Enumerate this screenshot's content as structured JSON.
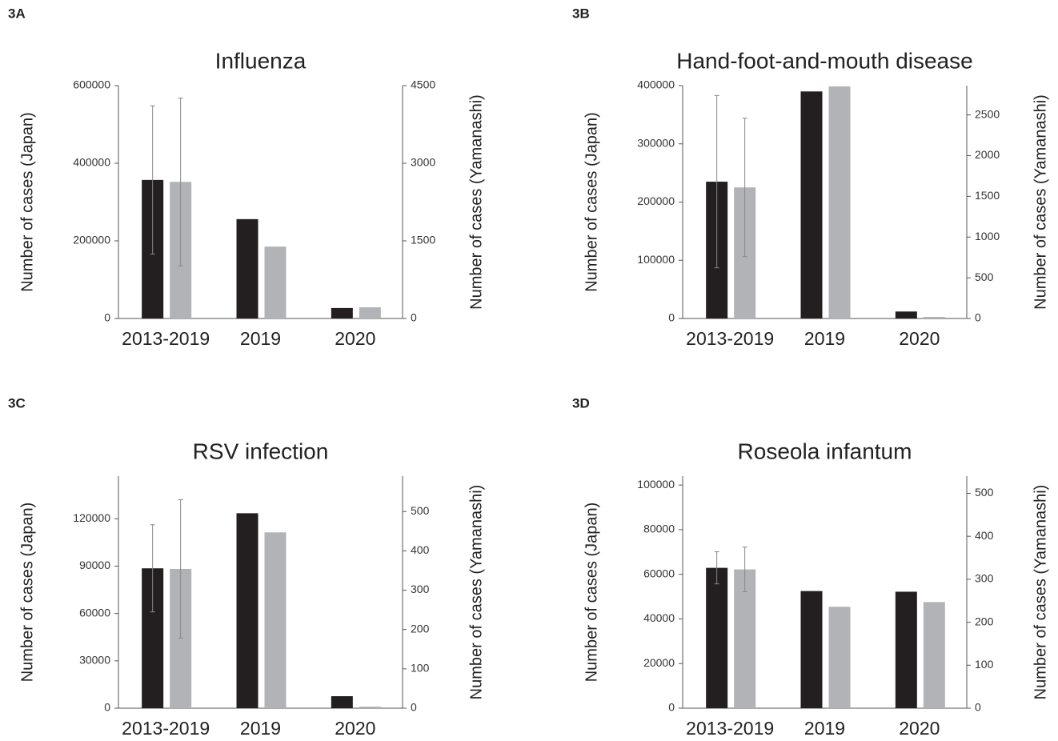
{
  "chart_data": [
    {
      "type": "bar",
      "label": "3A",
      "title": "Influenza",
      "y_label": "Number of cases (Japan)",
      "y2_label": "Number of cases (Yamanashi)",
      "categories": [
        "2013-2019",
        "2019",
        "2020"
      ],
      "series": [
        {
          "color": "#231f20",
          "values": [
            357000,
            256000,
            27000
          ],
          "errors": [
            191000,
            null,
            null
          ]
        },
        {
          "color": "#b1b3b6",
          "axis": "y2",
          "values": [
            2640,
            1390,
            216
          ],
          "errors": [
            1620,
            null,
            null
          ]
        }
      ],
      "ylim": [
        0,
        600000
      ],
      "yticks": [
        0,
        200000,
        400000,
        600000
      ],
      "y2lim": [
        0,
        4500
      ],
      "y2ticks": [
        0,
        1500,
        3000,
        4500
      ]
    },
    {
      "type": "bar",
      "label": "3B",
      "title": "Hand-foot-and-mouth disease",
      "y_label": "Number of cases (Japan)",
      "y2_label": "Number of cases (Yamanashi)",
      "categories": [
        "2013-2019",
        "2019",
        "2020"
      ],
      "series": [
        {
          "color": "#231f20",
          "values": [
            235000,
            390000,
            12000
          ],
          "errors": [
            148000,
            null,
            null
          ]
        },
        {
          "color": "#b1b3b6",
          "axis": "y2",
          "values": [
            1610,
            2850,
            20
          ],
          "errors": [
            850,
            null,
            null
          ]
        }
      ],
      "ylim": [
        0,
        400000
      ],
      "yticks": [
        0,
        100000,
        200000,
        300000,
        400000
      ],
      "y2lim": [
        0,
        2860
      ],
      "y2ticks": [
        0,
        500,
        1000,
        1500,
        2000,
        2500
      ]
    },
    {
      "type": "bar",
      "label": "3C",
      "title": "RSV infection",
      "y_label": "Number of cases (Japan)",
      "y2_label": "Number of cases (Yamanashi)",
      "categories": [
        "2013-2019",
        "2019",
        "2020"
      ],
      "series": [
        {
          "color": "#231f20",
          "values": [
            88600,
            123500,
            7600
          ],
          "errors": [
            27600,
            null,
            null
          ]
        },
        {
          "color": "#b1b3b6",
          "axis": "y2",
          "values": [
            354,
            447,
            4
          ],
          "errors": [
            176,
            null,
            null
          ]
        }
      ],
      "ylim": [
        0,
        147000
      ],
      "yticks": [
        0,
        30000,
        60000,
        90000,
        120000
      ],
      "y2lim": [
        0,
        590
      ],
      "y2ticks": [
        0,
        100,
        200,
        300,
        400,
        500
      ]
    },
    {
      "type": "bar",
      "label": "3D",
      "title": "Roseola infantum",
      "y_label": "Number of cases (Japan)",
      "y2_label": "Number of cases (Yamanashi)",
      "categories": [
        "2013-2019",
        "2019",
        "2020"
      ],
      "series": [
        {
          "color": "#231f20",
          "values": [
            62900,
            52500,
            52200
          ],
          "errors": [
            7200,
            null,
            null
          ]
        },
        {
          "color": "#b1b3b6",
          "axis": "y2",
          "values": [
            323,
            236,
            247
          ],
          "errors": [
            52,
            null,
            null
          ]
        }
      ],
      "ylim": [
        0,
        104000
      ],
      "yticks": [
        0,
        20000,
        40000,
        60000,
        80000,
        100000
      ],
      "y2lim": [
        0,
        540
      ],
      "y2ticks": [
        0,
        100,
        200,
        300,
        400,
        500
      ]
    }
  ]
}
